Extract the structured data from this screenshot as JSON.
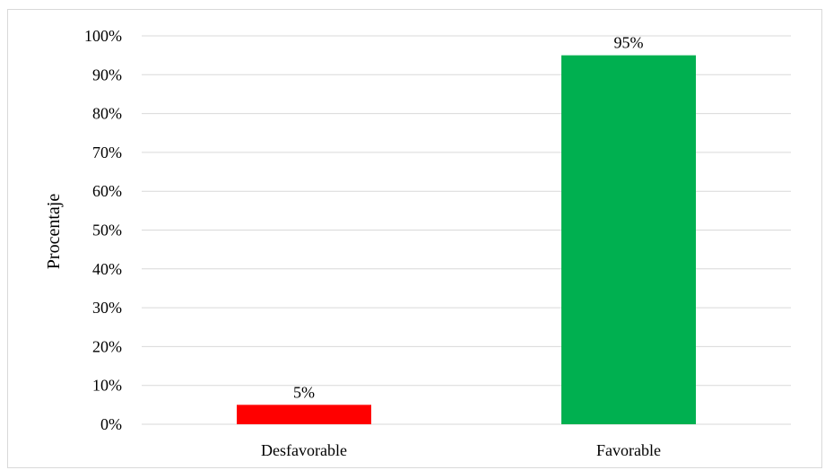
{
  "chart_data": {
    "type": "bar",
    "categories": [
      "Desfavorable",
      "Favorable"
    ],
    "values": [
      5,
      95
    ],
    "data_labels": [
      "5%",
      "95%"
    ],
    "colors": [
      "#ff0000",
      "#00b050"
    ],
    "title": "",
    "xlabel": "",
    "ylabel": "Procentaje",
    "ylim": [
      0,
      100
    ],
    "yticks": [
      0,
      10,
      20,
      30,
      40,
      50,
      60,
      70,
      80,
      90,
      100
    ],
    "ytick_labels": [
      "0%",
      "10%",
      "20%",
      "30%",
      "40%",
      "50%",
      "60%",
      "70%",
      "80%",
      "90%",
      "100%"
    ],
    "grid": true,
    "gridline_color": "#d9d9d9",
    "legend": "none"
  }
}
